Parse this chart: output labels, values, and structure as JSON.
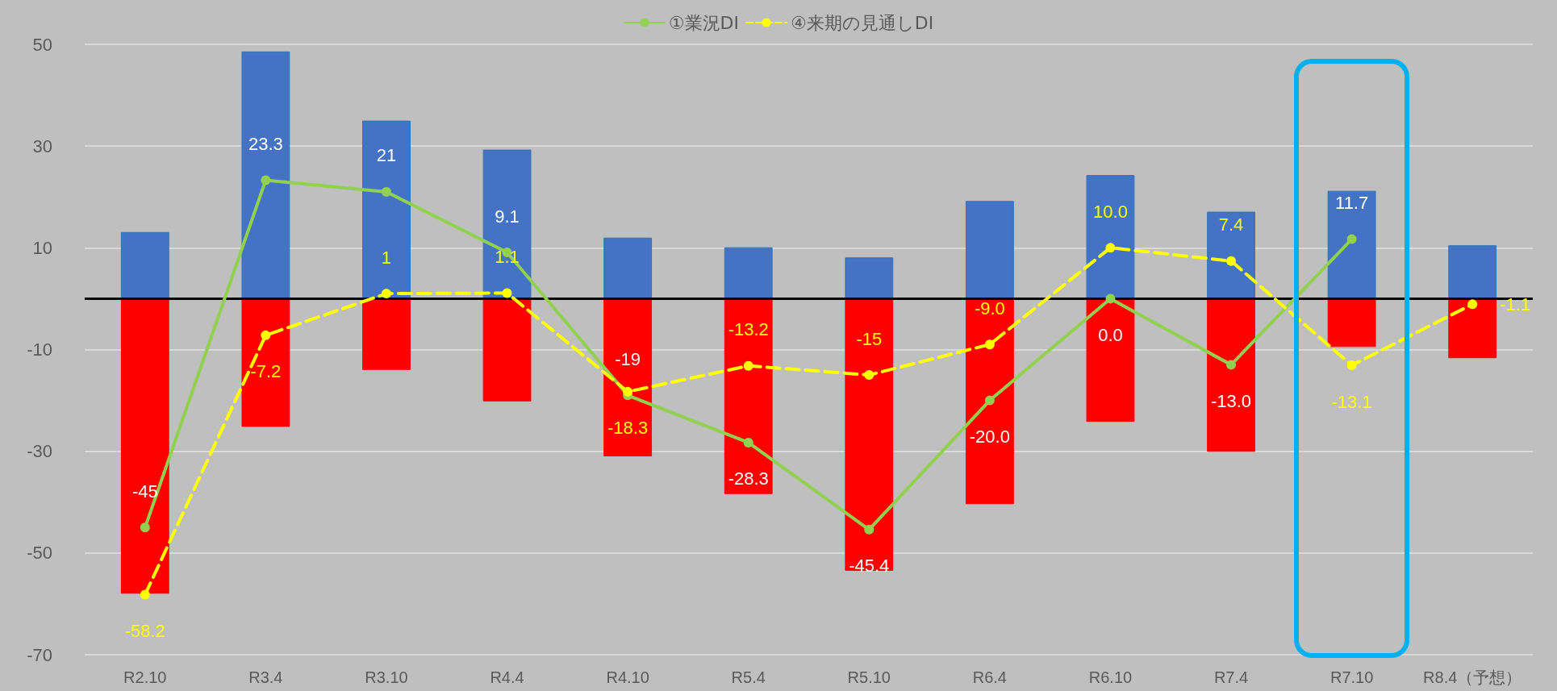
{
  "chart_data": {
    "type": "bar",
    "stacked": true,
    "categories": [
      "R2.10",
      "R3.4",
      "R3.10",
      "R4.4",
      "R4.10",
      "R5.4",
      "R5.10",
      "R6.4",
      "R6.10",
      "R7.4",
      "R7.10",
      "R8.4（予想）"
    ],
    "series": [
      {
        "color": "#4472c4",
        "values": [
          13.1,
          48.6,
          35.0,
          29.3,
          12.0,
          10.1,
          8.1,
          19.2,
          24.3,
          17.1,
          21.2,
          10.5
        ]
      },
      {
        "color": "#ff0000",
        "values": [
          -58.0,
          -25.2,
          -14.0,
          -20.2,
          -31.0,
          -38.4,
          -53.5,
          -40.4,
          -24.2,
          -30.1,
          -9.5,
          -11.7
        ]
      },
      {
        "type": "line",
        "name": "①業況DI",
        "color": "#92d050",
        "line_style": "solid",
        "marker": "circle",
        "values": [
          -45,
          23.3,
          21,
          9.1,
          -19,
          -28.3,
          -45.4,
          -20.0,
          0.0,
          -13.0,
          11.7,
          null
        ],
        "value_labels": [
          "-45",
          "23.3",
          "21",
          "9.1",
          "-19",
          "-28.3",
          "-45.4",
          "-20.0",
          "0.0",
          "-13.0",
          "11.7",
          null
        ]
      },
      {
        "type": "line",
        "name": "④来期の見通しDI",
        "color": "#ffff00",
        "line_style": "dashed",
        "marker": "circle",
        "values": [
          -58.2,
          -7.2,
          1,
          1.1,
          -18.3,
          -13.2,
          -15,
          -9.0,
          10.0,
          7.4,
          -13.1,
          -1.1
        ],
        "value_labels": [
          "-58.2",
          "-7.2",
          "1",
          "1.1",
          "-18.3",
          "-13.2",
          "-15",
          "-9.0",
          "10.0",
          "7.4",
          "-13.1",
          "-1.1"
        ]
      }
    ],
    "ylim": [
      -70,
      50
    ],
    "yticks": [
      -70,
      -50,
      -30,
      -10,
      10,
      30,
      50
    ],
    "ref_lines": [
      {
        "axis": "y",
        "value": 0,
        "color": "#000000",
        "line_style": "solid"
      }
    ],
    "grid": "y",
    "legend": "top"
  }
}
